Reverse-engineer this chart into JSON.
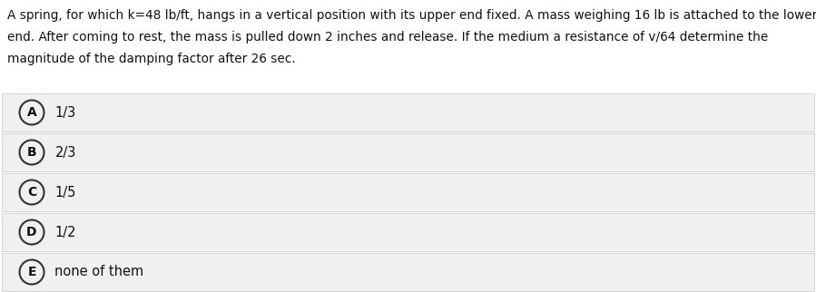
{
  "question_text": "A spring, for which k=48 lb/ft, hangs in a vertical position with its upper end fixed. A mass weighing 16 lb is attached to the lower\nend. After coming to rest, the mass is pulled down 2 inches and release. If the medium a resistance of v/64 determine the\nmagnitude of the damping factor after 26 sec.",
  "options": [
    {
      "label": "A",
      "text": "1/3"
    },
    {
      "label": "B",
      "text": "2/3"
    },
    {
      "label": "C",
      "text": "1/5"
    },
    {
      "label": "D",
      "text": "1/2"
    },
    {
      "label": "E",
      "text": "none of them"
    }
  ],
  "bg_color": "#ffffff",
  "option_bg_color": "#f0f0f0",
  "option_border_color": "#cccccc",
  "text_color": "#111111",
  "circle_edge_color": "#333333",
  "circle_bg_color": "#f0f0f0",
  "question_fontsize": 9.8,
  "option_fontsize": 10.5,
  "label_fontsize": 10.0,
  "fig_width": 8.99,
  "fig_height": 3.22,
  "dpi": 100
}
